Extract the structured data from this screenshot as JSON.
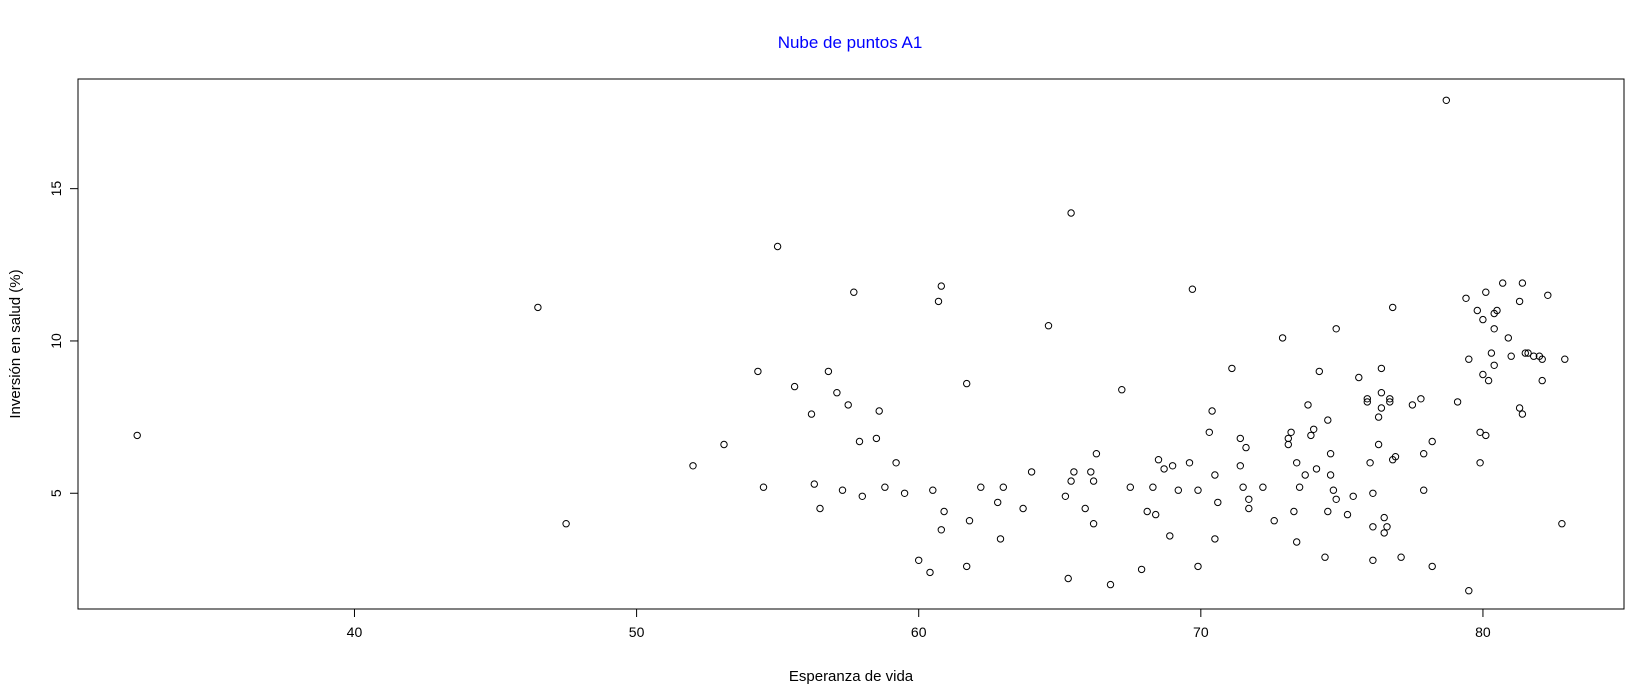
{
  "colors": {
    "title": "#0000ff",
    "axis": "#000000",
    "point": "#000000"
  },
  "chart_data": {
    "type": "scatter",
    "title": "Nube de puntos A1",
    "xlabel": "Esperanza de vida",
    "ylabel": "Inversión en salud (%)",
    "xlim": [
      30.2,
      85.0
    ],
    "ylim": [
      1.2,
      18.6
    ],
    "xticks": [
      40,
      50,
      60,
      70,
      80
    ],
    "yticks": [
      5,
      10,
      15
    ],
    "grid": false,
    "legend": "none",
    "points": [
      [
        32.3,
        6.9
      ],
      [
        46.5,
        11.1
      ],
      [
        47.5,
        4.0
      ],
      [
        52.0,
        5.9
      ],
      [
        53.1,
        6.6
      ],
      [
        54.3,
        9.0
      ],
      [
        54.5,
        5.2
      ],
      [
        55.0,
        13.1
      ],
      [
        55.6,
        8.5
      ],
      [
        56.2,
        7.6
      ],
      [
        56.3,
        5.3
      ],
      [
        56.5,
        4.5
      ],
      [
        56.8,
        9.0
      ],
      [
        57.1,
        8.3
      ],
      [
        57.3,
        5.1
      ],
      [
        57.5,
        7.9
      ],
      [
        57.7,
        11.6
      ],
      [
        57.9,
        6.7
      ],
      [
        58.0,
        4.9
      ],
      [
        58.5,
        6.8
      ],
      [
        58.6,
        7.7
      ],
      [
        58.8,
        5.2
      ],
      [
        59.2,
        6.0
      ],
      [
        59.5,
        5.0
      ],
      [
        60.0,
        2.8
      ],
      [
        60.4,
        2.4
      ],
      [
        60.5,
        5.1
      ],
      [
        60.7,
        11.3
      ],
      [
        60.8,
        11.8
      ],
      [
        60.8,
        3.8
      ],
      [
        60.9,
        4.4
      ],
      [
        61.7,
        8.6
      ],
      [
        61.7,
        2.6
      ],
      [
        61.8,
        4.1
      ],
      [
        62.2,
        5.2
      ],
      [
        62.8,
        4.7
      ],
      [
        62.9,
        3.5
      ],
      [
        63.0,
        5.2
      ],
      [
        63.7,
        4.5
      ],
      [
        64.0,
        5.7
      ],
      [
        64.6,
        10.5
      ],
      [
        65.2,
        4.9
      ],
      [
        65.3,
        2.2
      ],
      [
        65.4,
        14.2
      ],
      [
        65.4,
        5.4
      ],
      [
        65.5,
        5.7
      ],
      [
        65.9,
        4.5
      ],
      [
        66.1,
        5.7
      ],
      [
        66.2,
        5.4
      ],
      [
        66.2,
        4.0
      ],
      [
        66.3,
        6.3
      ],
      [
        66.8,
        2.0
      ],
      [
        67.2,
        8.4
      ],
      [
        67.5,
        5.2
      ],
      [
        67.9,
        2.5
      ],
      [
        68.1,
        4.4
      ],
      [
        68.3,
        5.2
      ],
      [
        68.4,
        4.3
      ],
      [
        68.5,
        6.1
      ],
      [
        68.7,
        5.8
      ],
      [
        68.9,
        3.6
      ],
      [
        69.0,
        5.9
      ],
      [
        69.2,
        5.1
      ],
      [
        69.6,
        6.0
      ],
      [
        69.7,
        11.7
      ],
      [
        69.9,
        2.6
      ],
      [
        69.9,
        5.1
      ],
      [
        70.3,
        7.0
      ],
      [
        70.4,
        7.7
      ],
      [
        70.5,
        3.5
      ],
      [
        70.5,
        5.6
      ],
      [
        70.6,
        4.7
      ],
      [
        71.1,
        9.1
      ],
      [
        71.4,
        6.8
      ],
      [
        71.4,
        5.9
      ],
      [
        71.5,
        5.2
      ],
      [
        71.6,
        6.5
      ],
      [
        71.7,
        4.8
      ],
      [
        71.7,
        4.5
      ],
      [
        72.2,
        5.2
      ],
      [
        72.6,
        4.1
      ],
      [
        72.9,
        10.1
      ],
      [
        73.1,
        6.8
      ],
      [
        73.1,
        6.6
      ],
      [
        73.2,
        7.0
      ],
      [
        73.3,
        4.4
      ],
      [
        73.4,
        6.0
      ],
      [
        73.4,
        3.4
      ],
      [
        73.5,
        5.2
      ],
      [
        73.7,
        5.6
      ],
      [
        73.8,
        7.9
      ],
      [
        73.9,
        6.9
      ],
      [
        74.0,
        7.1
      ],
      [
        74.1,
        5.8
      ],
      [
        74.2,
        9.0
      ],
      [
        74.4,
        2.9
      ],
      [
        74.5,
        4.4
      ],
      [
        74.5,
        7.4
      ],
      [
        74.6,
        5.6
      ],
      [
        74.6,
        6.3
      ],
      [
        74.7,
        5.1
      ],
      [
        74.8,
        4.8
      ],
      [
        74.8,
        10.4
      ],
      [
        75.2,
        4.3
      ],
      [
        75.4,
        4.9
      ],
      [
        75.6,
        8.8
      ],
      [
        75.9,
        8.1
      ],
      [
        75.9,
        8.0
      ],
      [
        76.0,
        6.0
      ],
      [
        76.1,
        5.0
      ],
      [
        76.1,
        3.9
      ],
      [
        76.1,
        2.8
      ],
      [
        76.3,
        6.6
      ],
      [
        76.3,
        7.5
      ],
      [
        76.4,
        7.8
      ],
      [
        76.4,
        9.1
      ],
      [
        76.4,
        8.3
      ],
      [
        76.5,
        3.7
      ],
      [
        76.5,
        4.2
      ],
      [
        76.6,
        3.9
      ],
      [
        76.7,
        8.1
      ],
      [
        76.7,
        8.0
      ],
      [
        76.8,
        11.1
      ],
      [
        76.8,
        6.1
      ],
      [
        76.9,
        6.2
      ],
      [
        77.1,
        2.9
      ],
      [
        77.5,
        7.9
      ],
      [
        77.8,
        8.1
      ],
      [
        77.9,
        6.3
      ],
      [
        77.9,
        5.1
      ],
      [
        78.2,
        6.7
      ],
      [
        78.2,
        2.6
      ],
      [
        78.7,
        17.9
      ],
      [
        79.1,
        8.0
      ],
      [
        79.4,
        11.4
      ],
      [
        79.5,
        9.4
      ],
      [
        79.5,
        1.8
      ],
      [
        79.8,
        11.0
      ],
      [
        79.9,
        7.0
      ],
      [
        79.9,
        6.0
      ],
      [
        80.0,
        8.9
      ],
      [
        80.0,
        10.7
      ],
      [
        80.1,
        11.6
      ],
      [
        80.1,
        6.9
      ],
      [
        80.2,
        8.7
      ],
      [
        80.3,
        9.6
      ],
      [
        80.4,
        10.4
      ],
      [
        80.4,
        9.2
      ],
      [
        80.4,
        10.9
      ],
      [
        80.5,
        11.0
      ],
      [
        80.7,
        11.9
      ],
      [
        80.9,
        10.1
      ],
      [
        81.0,
        9.5
      ],
      [
        81.3,
        7.8
      ],
      [
        81.3,
        11.3
      ],
      [
        81.4,
        7.6
      ],
      [
        81.4,
        11.9
      ],
      [
        81.5,
        9.6
      ],
      [
        81.6,
        9.6
      ],
      [
        81.8,
        9.5
      ],
      [
        82.0,
        9.5
      ],
      [
        82.1,
        9.4
      ],
      [
        82.1,
        8.7
      ],
      [
        82.3,
        11.5
      ],
      [
        82.8,
        4.0
      ],
      [
        82.9,
        9.4
      ]
    ]
  }
}
